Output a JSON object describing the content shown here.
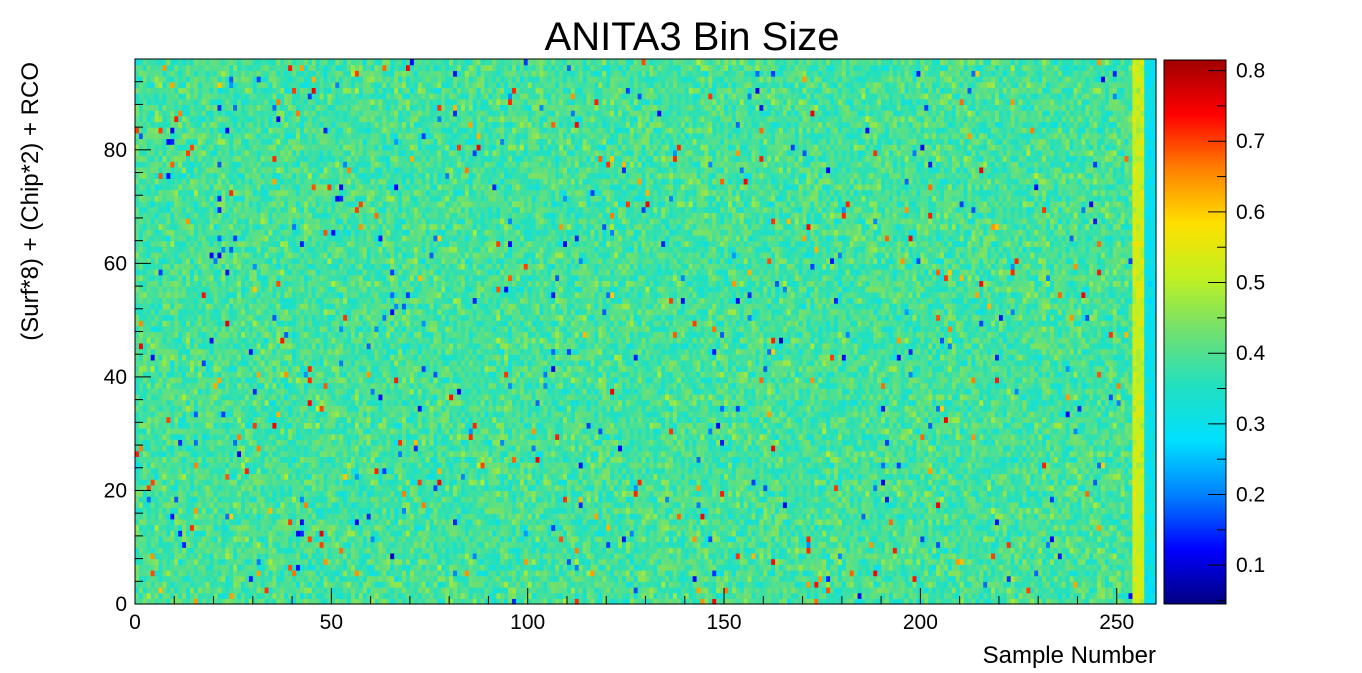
{
  "chart_data": {
    "type": "heatmap",
    "title": "ANITA3 Bin Size",
    "xlabel": "Sample Number",
    "ylabel": "(Surf*8) + (Chip*2) + RCO",
    "xlim": [
      0,
      260
    ],
    "ylim": [
      0,
      96
    ],
    "x_bins": 260,
    "y_bins": 96,
    "x_ticks": [
      0,
      50,
      100,
      150,
      200,
      250
    ],
    "y_ticks": [
      0,
      20,
      40,
      60,
      80
    ],
    "zlim": [
      0.045,
      0.815
    ],
    "z_ticks": [
      0.1,
      0.2,
      0.3,
      0.4,
      0.5,
      0.6,
      0.7,
      0.8
    ],
    "colormap": "rainbow",
    "colormap_stops": [
      "#00007f",
      "#0000ff",
      "#0080ff",
      "#00e0ff",
      "#20e0c0",
      "#70e070",
      "#c0f020",
      "#ffe000",
      "#ff8000",
      "#ff0000",
      "#a00000"
    ],
    "typical_value": 0.39,
    "value_spread": 0.05,
    "edge_columns_value": 0.52,
    "outlier_cells": [
      {
        "x": 164,
        "y": 46,
        "value": 0.08
      },
      {
        "x": 65,
        "y": 8,
        "value": 0.08
      },
      {
        "x": 0,
        "y": 83,
        "value": 0.7
      },
      {
        "x": 8,
        "y": 32,
        "value": 0.7
      },
      {
        "x": 47,
        "y": 12,
        "value": 0.75
      },
      {
        "x": 61,
        "y": 23,
        "value": 0.72
      },
      {
        "x": 206,
        "y": 32,
        "value": 0.75
      },
      {
        "x": 231,
        "y": 24,
        "value": 0.72
      },
      {
        "x": 162,
        "y": 46,
        "value": 0.72
      },
      {
        "x": 218,
        "y": 8,
        "value": 0.7
      }
    ]
  }
}
